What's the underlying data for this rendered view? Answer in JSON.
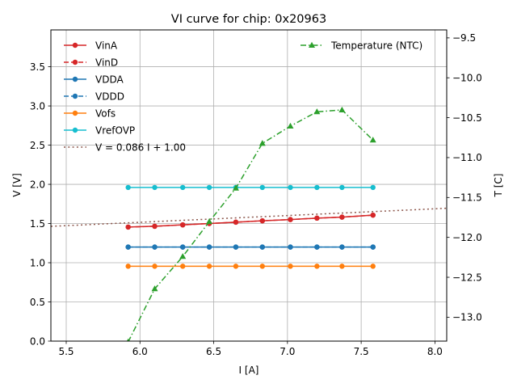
{
  "chart_data": {
    "type": "line",
    "title": "VI curve for chip: 0x20963",
    "xlabel": "I [A]",
    "ylabel": "V [V]",
    "y2label": "T [C]",
    "xlim": [
      5.396,
      8.08
    ],
    "ylim": [
      0.0,
      3.97
    ],
    "y2lim": [
      -13.3,
      -9.4
    ],
    "grid": true,
    "xticks": [
      5.5,
      6.0,
      6.5,
      7.0,
      7.5,
      8.0
    ],
    "xtick_labels": [
      "5.5",
      "6.0",
      "6.5",
      "7.0",
      "7.5",
      "8.0"
    ],
    "yticks": [
      0.0,
      0.5,
      1.0,
      1.5,
      2.0,
      2.5,
      3.0,
      3.5
    ],
    "ytick_labels": [
      "0.0",
      "0.5",
      "1.0",
      "1.5",
      "2.0",
      "2.5",
      "3.0",
      "3.5"
    ],
    "y2ticks": [
      -9.5,
      -10.0,
      -10.5,
      -11.0,
      -11.5,
      -12.0,
      -12.5,
      -13.0
    ],
    "y2tick_labels": [
      "−9.5",
      "−10.0",
      "−10.5",
      "−11.0",
      "−11.5",
      "−12.0",
      "−12.5",
      "−13.0"
    ],
    "x": [
      5.92,
      6.1,
      6.29,
      6.47,
      6.65,
      6.83,
      7.02,
      7.2,
      7.37,
      7.58
    ],
    "series": [
      {
        "name": "VinA",
        "axis": "left",
        "color": "#d62728",
        "style": "solid",
        "marker": "circle",
        "values": [
          1.455,
          1.465,
          1.483,
          1.5,
          1.517,
          1.535,
          1.551,
          1.569,
          1.582,
          1.607
        ]
      },
      {
        "name": "VinD",
        "axis": "left",
        "color": "#d62728",
        "style": "dashed",
        "marker": "circle",
        "values": [
          1.455,
          1.465,
          1.483,
          1.5,
          1.517,
          1.535,
          1.551,
          1.569,
          1.582,
          1.607
        ]
      },
      {
        "name": "VDDA",
        "axis": "left",
        "color": "#1f77b4",
        "style": "solid",
        "marker": "circle",
        "values": [
          1.2,
          1.2,
          1.2,
          1.2,
          1.2,
          1.2,
          1.2,
          1.2,
          1.2,
          1.2
        ]
      },
      {
        "name": "VDDD",
        "axis": "left",
        "color": "#1f77b4",
        "style": "dashed",
        "marker": "circle",
        "values": [
          1.2,
          1.2,
          1.2,
          1.2,
          1.2,
          1.2,
          1.2,
          1.2,
          1.2,
          1.2
        ]
      },
      {
        "name": "Vofs",
        "axis": "left",
        "color": "#ff7f0e",
        "style": "solid",
        "marker": "circle",
        "values": [
          0.955,
          0.955,
          0.955,
          0.955,
          0.955,
          0.955,
          0.955,
          0.955,
          0.955,
          0.955
        ]
      },
      {
        "name": "VrefOVP",
        "axis": "left",
        "color": "#17becf",
        "style": "solid",
        "marker": "circle",
        "values": [
          1.96,
          1.96,
          1.96,
          1.96,
          1.96,
          1.96,
          1.96,
          1.96,
          1.96,
          1.96
        ]
      },
      {
        "name": "Temperature (NTC)",
        "axis": "right",
        "color": "#2ca02c",
        "style": "dashdot",
        "marker": "triangle",
        "values": [
          -13.31,
          -12.645,
          -12.24,
          -11.803,
          -11.384,
          -10.822,
          -10.606,
          -10.426,
          -10.403,
          -10.781
        ]
      }
    ],
    "fit": {
      "name": "V = 0.086 I + 1.00",
      "slope": 0.086,
      "intercept": 1.0,
      "color": "#8c564b",
      "style": "dotted",
      "x_range": [
        5.396,
        8.08
      ]
    },
    "legend_left": [
      "VinA",
      "VinD",
      "VDDA",
      "VDDD",
      "Vofs",
      "VrefOVP",
      "V = 0.086 I + 1.00"
    ],
    "legend_right": [
      "Temperature (NTC)"
    ],
    "legend_placement": [
      "top-left",
      "top-right"
    ]
  }
}
